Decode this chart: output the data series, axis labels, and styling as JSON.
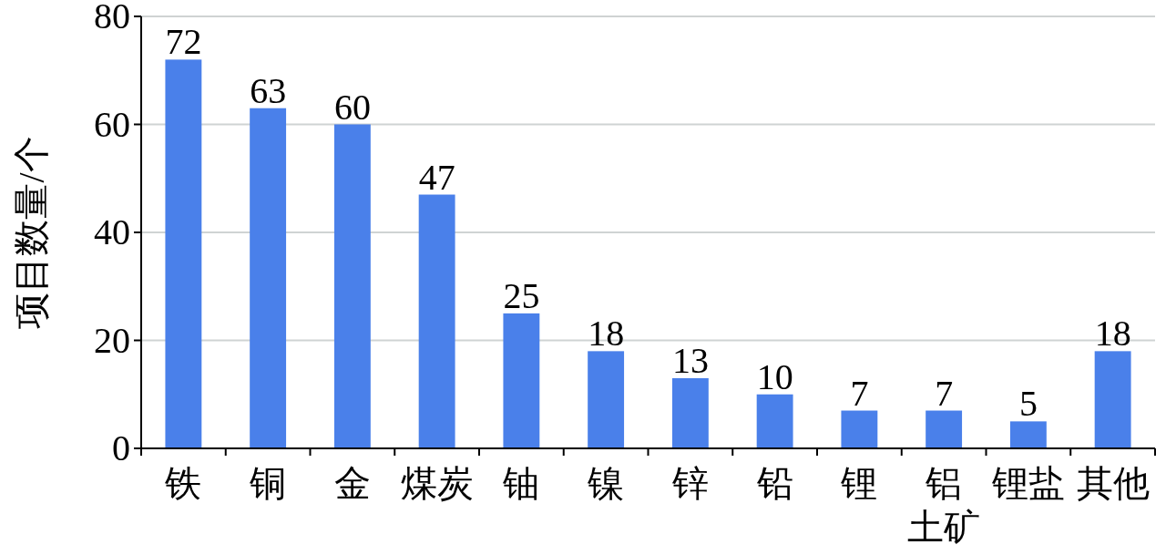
{
  "chart_data": {
    "type": "bar",
    "ylabel": "项目数量/个",
    "categories": [
      "铁",
      "铜",
      "金",
      "煤炭",
      "铀",
      "镍",
      "锌",
      "铅",
      "锂",
      "铝土矿",
      "锂盐",
      "其他"
    ],
    "values": [
      72,
      63,
      60,
      47,
      25,
      18,
      13,
      10,
      7,
      7,
      5,
      18
    ],
    "color": "#4a80ea",
    "ylim": [
      0,
      80
    ],
    "yticks": [
      0,
      20,
      40,
      60,
      80
    ],
    "grid": "y",
    "data_labels": true
  }
}
